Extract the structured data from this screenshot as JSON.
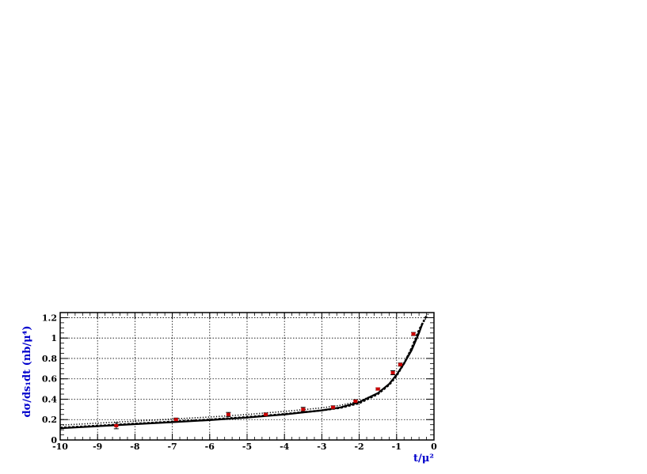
{
  "chart_data": {
    "type": "scatter",
    "xlabel": "t/μ²",
    "ylabel": "dσ/ds₁dt (nb/μ⁴)",
    "xlim": [
      -10,
      0
    ],
    "ylim": [
      0,
      1.25
    ],
    "x_ticks": [
      -10,
      -9,
      -8,
      -7,
      -6,
      -5,
      -4,
      -3,
      -2,
      -1,
      0
    ],
    "x_tick_labels": [
      "-10",
      "-9",
      "-8",
      "-7",
      "-6",
      "-5",
      "-4",
      "-3",
      "-2",
      "-1",
      "0"
    ],
    "y_ticks": [
      0,
      0.2,
      0.4,
      0.6,
      0.8,
      1,
      1.2
    ],
    "y_tick_labels": [
      "0",
      "0.2",
      "0.4",
      "0.6",
      "0.8",
      "1",
      "1.2"
    ],
    "grid": true,
    "legend": "none",
    "series": [
      {
        "kind": "points",
        "color": "#cc0000",
        "x": [
          -8.5,
          -6.9,
          -5.5,
          -4.5,
          -3.5,
          -2.7,
          -2.1,
          -1.5,
          -1.1,
          -0.9,
          -0.55
        ],
        "y": [
          0.14,
          0.2,
          0.25,
          0.25,
          0.3,
          0.32,
          0.38,
          0.5,
          0.66,
          0.74,
          1.04
        ],
        "err": [
          0.03,
          0.015,
          0.02,
          0.015,
          0.02,
          0.015,
          0.015,
          0.01,
          0.02,
          0.015,
          0.015
        ]
      },
      {
        "kind": "line",
        "style": "solid",
        "color": "#000000",
        "x": [
          -10,
          -9,
          -8,
          -7,
          -6,
          -5,
          -4,
          -3,
          -2.5,
          -2,
          -1.5,
          -1.2,
          -1,
          -0.8,
          -0.6,
          -0.4,
          -0.3
        ],
        "y": [
          0.115,
          0.135,
          0.155,
          0.175,
          0.195,
          0.22,
          0.25,
          0.29,
          0.32,
          0.37,
          0.46,
          0.55,
          0.64,
          0.75,
          0.88,
          1.05,
          1.15
        ]
      },
      {
        "kind": "line",
        "style": "dashed",
        "color": "#000000",
        "x": [
          -10,
          -9,
          -8,
          -7,
          -6,
          -5,
          -4,
          -3,
          -2.5,
          -2,
          -1.5,
          -1.2,
          -1,
          -0.8,
          -0.6,
          -0.4,
          -0.2
        ],
        "y": [
          0.12,
          0.14,
          0.16,
          0.18,
          0.2,
          0.225,
          0.255,
          0.29,
          0.315,
          0.36,
          0.45,
          0.54,
          0.63,
          0.75,
          0.9,
          1.08,
          1.22
        ]
      },
      {
        "kind": "line",
        "style": "dotted",
        "color": "#000000",
        "x": [
          -10,
          -9,
          -8,
          -7,
          -6,
          -5,
          -4,
          -3,
          -2.5,
          -2,
          -1.5,
          -1.2,
          -1,
          -0.8,
          -0.6,
          -0.4,
          -0.15
        ],
        "y": [
          0.145,
          0.165,
          0.185,
          0.205,
          0.225,
          0.25,
          0.28,
          0.315,
          0.34,
          0.38,
          0.46,
          0.55,
          0.645,
          0.76,
          0.9,
          1.07,
          1.24
        ]
      }
    ]
  }
}
